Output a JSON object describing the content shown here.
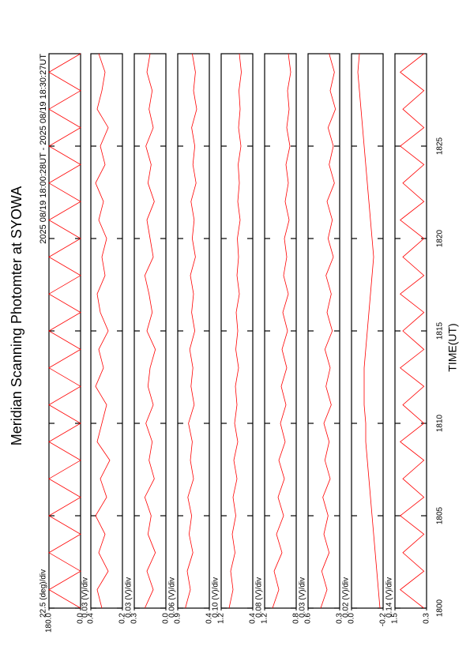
{
  "chart_data": {
    "type": "line",
    "title": "Meridian Scanning Photomter at SYOWA",
    "time_range": "2025 08/19 18:00:28UT - 2025 08/19 18:30:27UT",
    "x_label": "TIME(UT)",
    "xlim": [
      1800,
      1830
    ],
    "xticks": [
      1800,
      1805,
      1810,
      1815,
      1820,
      1825
    ],
    "color": "#ff0000",
    "x": [
      1800,
      1801,
      1802,
      1803,
      1804,
      1805,
      1806,
      1807,
      1808,
      1809,
      1810,
      1811,
      1812,
      1813,
      1814,
      1815,
      1816,
      1817,
      1818,
      1819,
      1820,
      1821,
      1822,
      1823,
      1824,
      1825,
      1826,
      1827,
      1828,
      1829,
      1830
    ],
    "panels": [
      {
        "scale_label": "22.5 (deg)/div",
        "ylim": [
          0,
          180
        ],
        "yticks": [
          {
            "value": 180,
            "label": "180.0"
          },
          {
            "value": 0,
            "label": "0.0"
          }
        ],
        "values": [
          0,
          180,
          0,
          180,
          0,
          180,
          0,
          180,
          0,
          180,
          0,
          180,
          0,
          180,
          0,
          180,
          0,
          180,
          0,
          180,
          0,
          180,
          0,
          180,
          0,
          180,
          0,
          180,
          0,
          180,
          0
        ]
      },
      {
        "scale_label": "0.03 (V)/div",
        "ylim": [
          0.2,
          0.4
        ],
        "yticks": [
          0.4,
          0.2
        ],
        "values": [
          0.33,
          0.36,
          0.29,
          0.35,
          0.31,
          0.37,
          0.3,
          0.34,
          0.28,
          0.36,
          0.33,
          0.3,
          0.37,
          0.32,
          0.35,
          0.29,
          0.34,
          0.36,
          0.31,
          0.33,
          0.3,
          0.35,
          0.32,
          0.37,
          0.31,
          0.34,
          0.29,
          0.36,
          0.33,
          0.31,
          0.35
        ]
      },
      {
        "scale_label": "0.03 (V)/div",
        "ylim": [
          0,
          0.3
        ],
        "yticks": [
          0.3,
          {
            "value": 0,
            "label": "0.0"
          }
        ],
        "values": [
          0.2,
          0.12,
          0.18,
          0.1,
          0.17,
          0.14,
          0.2,
          0.11,
          0.16,
          0.13,
          0.19,
          0.12,
          0.17,
          0.15,
          0.1,
          0.18,
          0.13,
          0.16,
          0.2,
          0.12,
          0.15,
          0.18,
          0.11,
          0.17,
          0.14,
          0.19,
          0.12,
          0.16,
          0.13,
          0.18,
          0.15
        ]
      },
      {
        "scale_label": "0.06 (V)/div",
        "ylim": [
          0.4,
          0.9
        ],
        "yticks": [
          0.9,
          0.4
        ],
        "values": [
          0.78,
          0.7,
          0.75,
          0.66,
          0.72,
          0.68,
          0.74,
          0.65,
          0.7,
          0.67,
          0.73,
          0.64,
          0.69,
          0.66,
          0.71,
          0.63,
          0.68,
          0.65,
          0.7,
          0.62,
          0.67,
          0.64,
          0.69,
          0.61,
          0.66,
          0.63,
          0.68,
          0.6,
          0.65,
          0.62,
          0.67
        ]
      },
      {
        "scale_label": "0.10 (V)/div",
        "ylim": [
          0.4,
          1.2
        ],
        "yticks": [
          1.2,
          0.4
        ],
        "values": [
          1.0,
          0.9,
          0.96,
          0.85,
          0.92,
          0.83,
          0.9,
          0.8,
          0.88,
          0.78,
          0.86,
          0.8,
          0.84,
          0.76,
          0.83,
          0.78,
          0.82,
          0.74,
          0.8,
          0.76,
          0.79,
          0.72,
          0.78,
          0.74,
          0.77,
          0.7,
          0.76,
          0.72,
          0.75,
          0.69,
          0.74
        ]
      },
      {
        "scale_label": "0.08 (V)/div",
        "ylim": [
          0.8,
          1.2
        ],
        "yticks": [
          1.2,
          0.8
        ],
        "values": [
          1.1,
          1.02,
          1.08,
          0.98,
          1.05,
          0.96,
          1.03,
          0.95,
          1.02,
          0.94,
          1.0,
          0.93,
          0.99,
          0.92,
          0.98,
          0.91,
          0.97,
          0.9,
          0.96,
          0.92,
          0.95,
          0.89,
          0.94,
          0.9,
          0.93,
          0.88,
          0.92,
          0.89,
          0.91,
          0.87,
          0.9
        ]
      },
      {
        "scale_label": "0.03 (V)/div",
        "ylim": [
          0.3,
          0.6
        ],
        "yticks": [
          0.6,
          0.3
        ],
        "values": [
          0.48,
          0.42,
          0.47,
          0.4,
          0.45,
          0.41,
          0.46,
          0.39,
          0.44,
          0.4,
          0.45,
          0.38,
          0.43,
          0.39,
          0.44,
          0.37,
          0.42,
          0.38,
          0.43,
          0.36,
          0.41,
          0.37,
          0.42,
          0.35,
          0.4,
          0.36,
          0.41,
          0.34,
          0.39,
          0.35,
          0.4
        ]
      },
      {
        "scale_label": "0.02 (V)/div",
        "ylim": [
          -0.2,
          0
        ],
        "yticks": [
          {
            "value": 0,
            "label": "0.0"
          },
          -0.2
        ],
        "values": [
          -0.18,
          -0.17,
          -0.16,
          -0.15,
          -0.14,
          -0.13,
          -0.12,
          -0.11,
          -0.1,
          -0.09,
          -0.09,
          -0.08,
          -0.08,
          -0.08,
          -0.09,
          -0.1,
          -0.11,
          -0.12,
          -0.13,
          -0.14,
          -0.13,
          -0.12,
          -0.11,
          -0.1,
          -0.09,
          -0.08,
          -0.07,
          -0.06,
          -0.05,
          -0.04,
          -0.05
        ]
      },
      {
        "scale_label": "0.14 (V)/div",
        "ylim": [
          0.3,
          1.5
        ],
        "yticks": [
          1.5,
          0.3
        ],
        "values": [
          0.4,
          1.3,
          0.4,
          1.2,
          0.4,
          1.3,
          0.4,
          1.2,
          0.4,
          1.3,
          0.4,
          1.2,
          0.4,
          1.3,
          0.4,
          1.2,
          0.4,
          1.3,
          0.4,
          1.2,
          0.4,
          1.3,
          0.4,
          1.2,
          0.4,
          1.3,
          0.4,
          1.2,
          0.4,
          1.3,
          0.4
        ]
      }
    ]
  }
}
